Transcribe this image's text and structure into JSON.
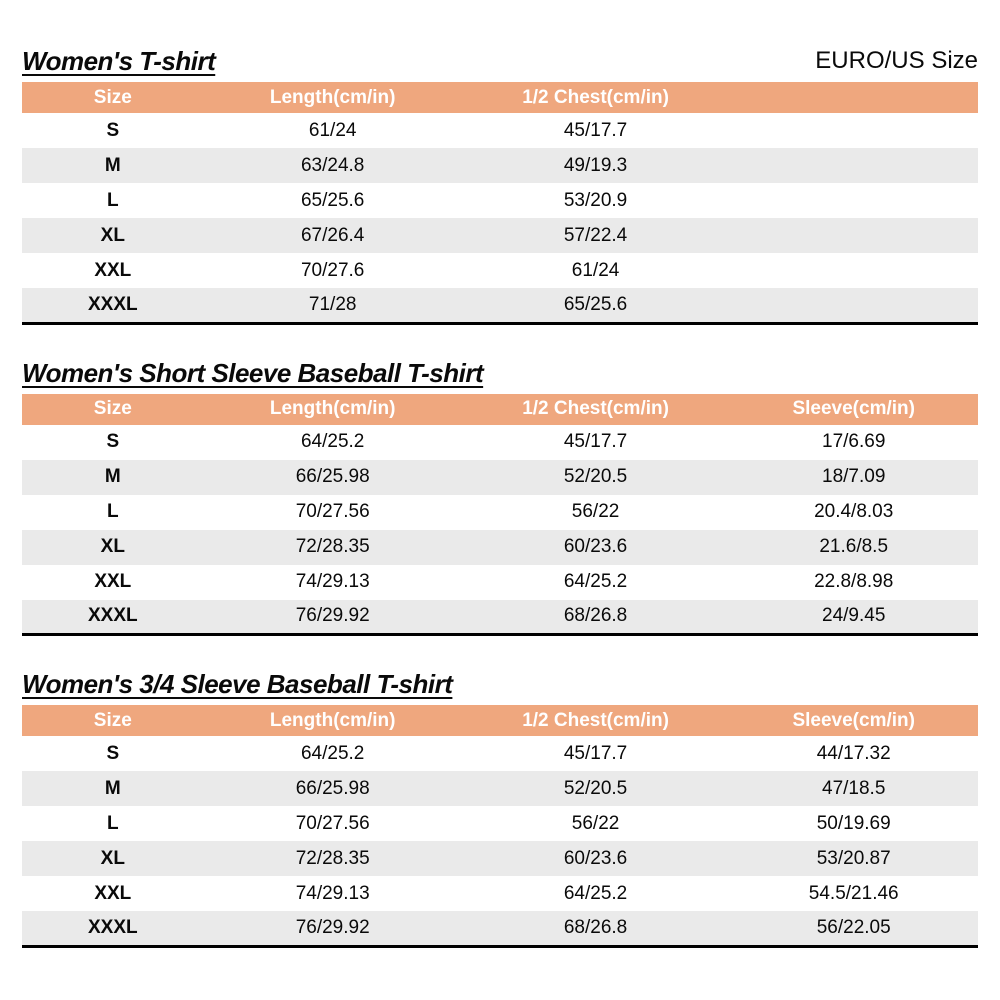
{
  "page": {
    "size_standard_label": "EURO/US Size"
  },
  "colors": {
    "header_bg": "#EFA77E",
    "row_alt_bg": "#EAEAEA",
    "header_text": "#FFFFFF",
    "table_bottom_border": "#000000"
  },
  "tables": [
    {
      "title": "Women's T-shirt",
      "columns": [
        "Size",
        "Length(cm/in)",
        "1/2 Chest(cm/in)"
      ],
      "rows": [
        [
          "S",
          "61/24",
          "45/17.7"
        ],
        [
          "M",
          "63/24.8",
          "49/19.3"
        ],
        [
          "L",
          "65/25.6",
          "53/20.9"
        ],
        [
          "XL",
          "67/26.4",
          "57/22.4"
        ],
        [
          "XXL",
          "70/27.6",
          "61/24"
        ],
        [
          "XXXL",
          "71/28",
          "65/25.6"
        ]
      ]
    },
    {
      "title": "Women's Short Sleeve Baseball T-shirt",
      "columns": [
        "Size",
        "Length(cm/in)",
        "1/2 Chest(cm/in)",
        "Sleeve(cm/in)"
      ],
      "rows": [
        [
          "S",
          "64/25.2",
          "45/17.7",
          "17/6.69"
        ],
        [
          "M",
          "66/25.98",
          "52/20.5",
          "18/7.09"
        ],
        [
          "L",
          "70/27.56",
          "56/22",
          "20.4/8.03"
        ],
        [
          "XL",
          "72/28.35",
          "60/23.6",
          "21.6/8.5"
        ],
        [
          "XXL",
          "74/29.13",
          "64/25.2",
          "22.8/8.98"
        ],
        [
          "XXXL",
          "76/29.92",
          "68/26.8",
          "24/9.45"
        ]
      ]
    },
    {
      "title": "Women's 3/4 Sleeve Baseball T-shirt",
      "columns": [
        "Size",
        "Length(cm/in)",
        "1/2 Chest(cm/in)",
        "Sleeve(cm/in)"
      ],
      "rows": [
        [
          "S",
          "64/25.2",
          "45/17.7",
          "44/17.32"
        ],
        [
          "M",
          "66/25.98",
          "52/20.5",
          "47/18.5"
        ],
        [
          "L",
          "70/27.56",
          "56/22",
          "50/19.69"
        ],
        [
          "XL",
          "72/28.35",
          "60/23.6",
          "53/20.87"
        ],
        [
          "XXL",
          "74/29.13",
          "64/25.2",
          "54.5/21.46"
        ],
        [
          "XXXL",
          "76/29.92",
          "68/26.8",
          "56/22.05"
        ]
      ]
    }
  ]
}
